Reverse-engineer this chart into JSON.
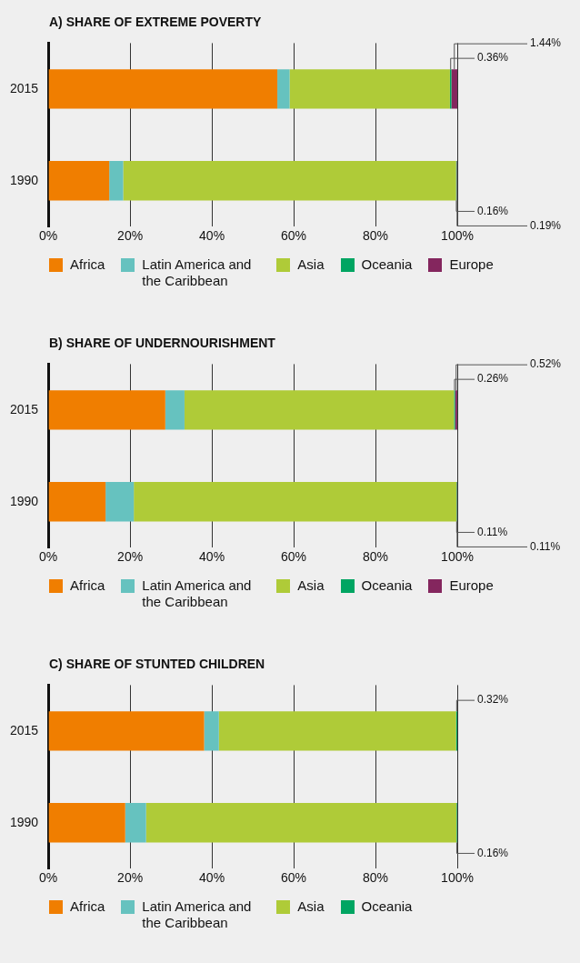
{
  "chart_data": [
    {
      "type": "bar",
      "title": "A) SHARE OF EXTREME POVERTY",
      "orientation": "horizontal",
      "stacked": true,
      "categories": [
        "2015",
        "1990"
      ],
      "xlim": [
        0,
        100
      ],
      "xticks": [
        {
          "value": 0,
          "label": "0%"
        },
        {
          "value": 20,
          "label": "20%"
        },
        {
          "value": 40,
          "label": "40%"
        },
        {
          "value": 60,
          "label": "60%"
        },
        {
          "value": 80,
          "label": "80%"
        },
        {
          "value": 100,
          "label": "100%"
        }
      ],
      "grid": "x",
      "legend": "bottom",
      "series": [
        {
          "name": "Africa",
          "color": "#f07e00",
          "values": [
            56,
            14.9
          ]
        },
        {
          "name": "Latin America and the Caribbean",
          "color": "#66c2bf",
          "values": [
            3,
            3.4
          ]
        },
        {
          "name": "Asia",
          "color": "#afcb38",
          "values": [
            39.2,
            81.4
          ]
        },
        {
          "name": "Oceania",
          "color": "#00a562",
          "values": [
            0.36,
            0.16
          ],
          "value_labels": [
            "0.36%",
            "0.16%"
          ]
        },
        {
          "name": "Europe",
          "color": "#84265e",
          "values": [
            1.44,
            0.19
          ],
          "value_labels": [
            "1.44%",
            "0.19%"
          ]
        }
      ]
    },
    {
      "type": "bar",
      "title": "B) SHARE OF UNDERNOURISHMENT",
      "orientation": "horizontal",
      "stacked": true,
      "categories": [
        "2015",
        "1990"
      ],
      "xlim": [
        0,
        100
      ],
      "xticks": [
        {
          "value": 0,
          "label": "0%"
        },
        {
          "value": 20,
          "label": "20%"
        },
        {
          "value": 40,
          "label": "40%"
        },
        {
          "value": 60,
          "label": "60%"
        },
        {
          "value": 80,
          "label": "80%"
        },
        {
          "value": 100,
          "label": "100%"
        }
      ],
      "grid": "x",
      "legend": "bottom",
      "series": [
        {
          "name": "Africa",
          "color": "#f07e00",
          "values": [
            28.6,
            14
          ]
        },
        {
          "name": "Latin America and the Caribbean",
          "color": "#66c2bf",
          "values": [
            4.7,
            6.9
          ]
        },
        {
          "name": "Asia",
          "color": "#afcb38",
          "values": [
            65.9,
            78.9
          ]
        },
        {
          "name": "Oceania",
          "color": "#00a562",
          "values": [
            0.26,
            0.11
          ],
          "value_labels": [
            "0.26%",
            "0.11%"
          ]
        },
        {
          "name": "Europe",
          "color": "#84265e",
          "values": [
            0.52,
            0.11
          ],
          "value_labels": [
            "0.52%",
            "0.11%"
          ]
        }
      ]
    },
    {
      "type": "bar",
      "title": "C) SHARE OF STUNTED CHILDREN",
      "orientation": "horizontal",
      "stacked": true,
      "categories": [
        "2015",
        "1990"
      ],
      "xlim": [
        0,
        100
      ],
      "xticks": [
        {
          "value": 0,
          "label": "0%"
        },
        {
          "value": 20,
          "label": "20%"
        },
        {
          "value": 40,
          "label": "40%"
        },
        {
          "value": 60,
          "label": "60%"
        },
        {
          "value": 80,
          "label": "80%"
        },
        {
          "value": 100,
          "label": "100%"
        }
      ],
      "grid": "x",
      "legend": "bottom",
      "series": [
        {
          "name": "Africa",
          "color": "#f07e00",
          "values": [
            38.1,
            18.8
          ]
        },
        {
          "name": "Latin America and the Caribbean",
          "color": "#66c2bf",
          "values": [
            3.6,
            5.1
          ]
        },
        {
          "name": "Asia",
          "color": "#afcb38",
          "values": [
            58,
            75.9
          ]
        },
        {
          "name": "Oceania",
          "color": "#00a562",
          "values": [
            0.32,
            0.16
          ],
          "value_labels": [
            "0.32%",
            "0.16%"
          ]
        }
      ]
    }
  ]
}
